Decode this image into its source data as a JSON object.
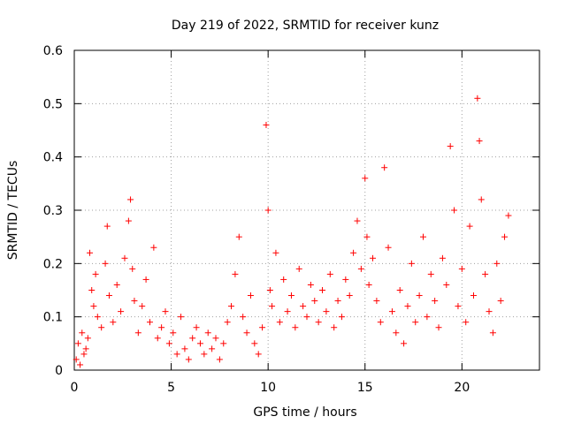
{
  "chart_data": {
    "type": "scatter",
    "title": "Day 219 of 2022, SRMTID for receiver kunz",
    "xlabel": "GPS time / hours",
    "ylabel": "SRMTID / TECUs",
    "xlim": [
      0,
      24
    ],
    "ylim": [
      0,
      0.6
    ],
    "x_ticks": [
      "0",
      "5",
      "10",
      "15",
      "20"
    ],
    "x_tick_values": [
      0,
      5,
      10,
      15,
      20
    ],
    "y_ticks": [
      "0",
      "0.1",
      "0.2",
      "0.3",
      "0.4",
      "0.5",
      "0.6"
    ],
    "y_tick_values": [
      0,
      0.1,
      0.2,
      0.3,
      0.4,
      0.5,
      0.6
    ],
    "grid": true,
    "marker": "+",
    "series": [
      {
        "name": "SRMTID",
        "color": "#ff0000",
        "x": [
          0.1,
          0.2,
          0.3,
          0.4,
          0.5,
          0.6,
          0.7,
          0.8,
          0.9,
          1.0,
          1.1,
          1.2,
          1.4,
          1.6,
          1.7,
          1.8,
          2.0,
          2.2,
          2.4,
          2.6,
          2.8,
          2.9,
          3.0,
          3.1,
          3.3,
          3.5,
          3.7,
          3.9,
          4.1,
          4.3,
          4.5,
          4.7,
          4.9,
          5.1,
          5.3,
          5.5,
          5.7,
          5.9,
          6.1,
          6.3,
          6.5,
          6.7,
          6.9,
          7.1,
          7.3,
          7.5,
          7.7,
          7.9,
          8.1,
          8.3,
          8.5,
          8.7,
          8.9,
          9.1,
          9.3,
          9.5,
          9.7,
          9.9,
          10.0,
          10.1,
          10.2,
          10.4,
          10.6,
          10.8,
          11.0,
          11.2,
          11.4,
          11.6,
          11.8,
          12.0,
          12.2,
          12.4,
          12.6,
          12.8,
          13.0,
          13.2,
          13.4,
          13.6,
          13.8,
          14.0,
          14.2,
          14.4,
          14.6,
          14.8,
          15.0,
          15.1,
          15.2,
          15.4,
          15.6,
          15.8,
          16.0,
          16.2,
          16.4,
          16.6,
          16.8,
          17.0,
          17.2,
          17.4,
          17.6,
          17.8,
          18.0,
          18.2,
          18.4,
          18.6,
          18.8,
          19.0,
          19.2,
          19.4,
          19.6,
          19.8,
          20.0,
          20.2,
          20.4,
          20.6,
          20.8,
          20.9,
          21.0,
          21.2,
          21.4,
          21.6,
          21.8,
          22.0,
          22.2,
          22.4
        ],
        "y": [
          0.02,
          0.05,
          0.01,
          0.07,
          0.03,
          0.04,
          0.06,
          0.22,
          0.15,
          0.12,
          0.18,
          0.1,
          0.08,
          0.2,
          0.27,
          0.14,
          0.09,
          0.16,
          0.11,
          0.21,
          0.28,
          0.32,
          0.19,
          0.13,
          0.07,
          0.12,
          0.17,
          0.09,
          0.23,
          0.06,
          0.08,
          0.11,
          0.05,
          0.07,
          0.03,
          0.1,
          0.04,
          0.02,
          0.06,
          0.08,
          0.05,
          0.03,
          0.07,
          0.04,
          0.06,
          0.02,
          0.05,
          0.09,
          0.12,
          0.18,
          0.25,
          0.1,
          0.07,
          0.14,
          0.05,
          0.03,
          0.08,
          0.46,
          0.3,
          0.15,
          0.12,
          0.22,
          0.09,
          0.17,
          0.11,
          0.14,
          0.08,
          0.19,
          0.12,
          0.1,
          0.16,
          0.13,
          0.09,
          0.15,
          0.11,
          0.18,
          0.08,
          0.13,
          0.1,
          0.17,
          0.14,
          0.22,
          0.28,
          0.19,
          0.36,
          0.25,
          0.16,
          0.21,
          0.13,
          0.09,
          0.38,
          0.23,
          0.11,
          0.07,
          0.15,
          0.05,
          0.12,
          0.2,
          0.09,
          0.14,
          0.25,
          0.1,
          0.18,
          0.13,
          0.08,
          0.21,
          0.16,
          0.42,
          0.3,
          0.12,
          0.19,
          0.09,
          0.27,
          0.14,
          0.51,
          0.43,
          0.32,
          0.18,
          0.11,
          0.07,
          0.2,
          0.13,
          0.25,
          0.29
        ]
      }
    ]
  }
}
